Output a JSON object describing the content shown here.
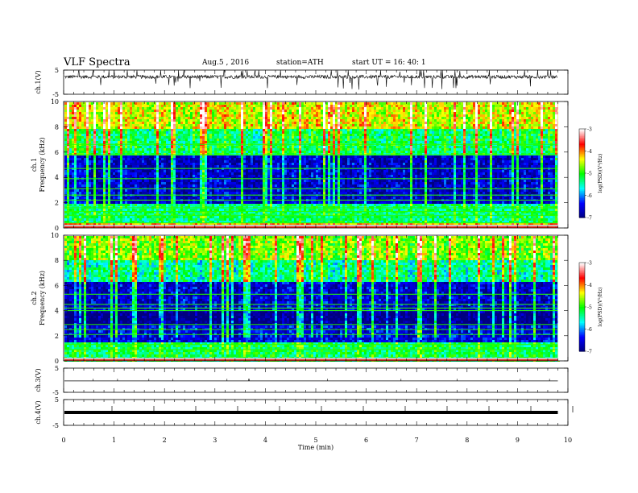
{
  "header": {
    "title": "VLF  Spectra",
    "date": "Aug.5  , 2016",
    "station": "station=ATH",
    "start": "start  UT  =   16: 40: 1"
  },
  "chart_data": [
    {
      "type": "line",
      "panel": "ch1-waveform",
      "ylabel": "ch.1(V)",
      "ylim": [
        -5,
        5
      ],
      "yticks": [
        "5",
        "-5"
      ],
      "note": "time-series waveform around ~+2 V with many spikes"
    },
    {
      "type": "heatmap",
      "panel": "ch1-spectrogram",
      "ylabel": "ch.1\nFrequency  (kHz)",
      "ylim": [
        0,
        10
      ],
      "yticks": [
        "0",
        "2",
        "4",
        "6",
        "8",
        "10"
      ],
      "colorbar": {
        "label": "log(PSD)(V²/Hz)",
        "range": [
          -7,
          -3
        ],
        "ticks": [
          "-3",
          "-4",
          "-5",
          "-6",
          "-7"
        ]
      },
      "bands": [
        {
          "from": 0.0,
          "to": 0.4,
          "level": -4.2
        },
        {
          "from": 0.4,
          "to": 2.0,
          "level": -5.3
        },
        {
          "from": 2.0,
          "to": 5.8,
          "level": -6.6
        },
        {
          "from": 5.8,
          "to": 8.0,
          "level": -5.2
        },
        {
          "from": 8.0,
          "to": 10.0,
          "level": -4.4
        }
      ],
      "lines_khz": [
        0.4,
        1.0,
        1.3,
        1.6,
        2.2,
        2.6,
        3.1,
        3.9,
        4.7,
        5.8,
        6.6
      ]
    },
    {
      "type": "heatmap",
      "panel": "ch2-spectrogram",
      "ylabel": "ch.2\nFrequency  (kHz)",
      "ylim": [
        0,
        10
      ],
      "yticks": [
        "0",
        "2",
        "4",
        "6",
        "8",
        "10"
      ],
      "colorbar": {
        "label": "log(PSD)(V²/Hz)",
        "range": [
          -7,
          -3
        ],
        "ticks": [
          "-3",
          "-4",
          "-5",
          "-6",
          "-7"
        ]
      },
      "bands": [
        {
          "from": 0.0,
          "to": 1.5,
          "level": -5.2
        },
        {
          "from": 1.5,
          "to": 3.0,
          "level": -6.5
        },
        {
          "from": 3.0,
          "to": 4.0,
          "level": -7.0
        },
        {
          "from": 4.0,
          "to": 6.3,
          "level": -6.6
        },
        {
          "from": 6.3,
          "to": 8.2,
          "level": -5.4
        },
        {
          "from": 8.2,
          "to": 10.0,
          "level": -4.7
        }
      ],
      "lines_khz": [
        0.2,
        0.9,
        1.3,
        2.1,
        2.5,
        2.9,
        4.0,
        4.2,
        4.5,
        5.3
      ]
    },
    {
      "type": "line",
      "panel": "ch3-waveform",
      "ylabel": "ch.3(V)",
      "ylim": [
        -5,
        5
      ],
      "yticks": [
        "5",
        "-5"
      ],
      "note": "near-constant signal at ~0 V"
    },
    {
      "type": "line",
      "panel": "ch4-waveform",
      "ylabel": "ch.4(V)",
      "ylim": [
        -5,
        5
      ],
      "yticks": [
        "5",
        "-5"
      ],
      "note": "thick flat line at ~0 V"
    }
  ],
  "xaxis": {
    "label": "Time  (min)",
    "range": [
      0,
      10
    ],
    "data_end": 9.8,
    "ticks": [
      "0",
      "1",
      "2",
      "3",
      "4",
      "5",
      "6",
      "7",
      "8",
      "9",
      "10"
    ]
  },
  "colors": {
    "colormap": [
      "#000080",
      "#0000ff",
      "#00ffff",
      "#00ff00",
      "#ffff00",
      "#ff0000",
      "#ffffff"
    ],
    "axes": "#000000"
  }
}
